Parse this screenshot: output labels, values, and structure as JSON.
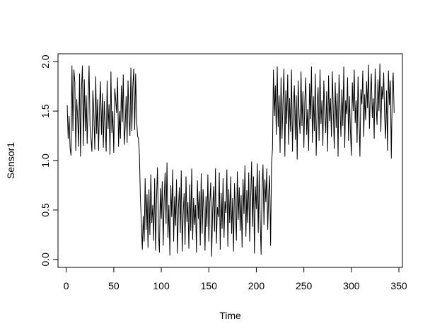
{
  "chart_data": {
    "type": "line",
    "xlabel": "Time",
    "ylabel": "Sensor1",
    "xlim": [
      -8.7,
      353.7
    ],
    "ylim": [
      -0.08,
      2.08
    ],
    "x_ticks": [
      "0",
      "50",
      "100",
      "150",
      "200",
      "250",
      "300",
      "350"
    ],
    "x_tick_values": [
      0,
      50,
      100,
      150,
      200,
      250,
      300,
      350
    ],
    "y_ticks": [
      "0.0",
      "0.5",
      "1.0",
      "1.5",
      "2.0"
    ],
    "y_tick_values": [
      0,
      0.5,
      1,
      1.5,
      2
    ],
    "grid": false,
    "color": "#000000",
    "series": [
      {
        "x_start": 1,
        "x_step": 1,
        "values": [
          1.56,
          1.22,
          1.45,
          1.13,
          1.05,
          1.96,
          1.3,
          1.92,
          1.8,
          1.1,
          1.62,
          1.43,
          1.14,
          1.88,
          1.04,
          1.72,
          1.96,
          1.15,
          1.82,
          1.3,
          1.66,
          1.17,
          1.59,
          1.96,
          1.36,
          1.22,
          1.09,
          1.71,
          1.48,
          1.11,
          1.85,
          1.27,
          1.62,
          1.1,
          1.54,
          1.8,
          1.26,
          1.68,
          1.13,
          1.6,
          1.35,
          1.09,
          1.81,
          1.32,
          1.57,
          1.06,
          1.9,
          1.28,
          1.5,
          1.08,
          1.73,
          1.62,
          1.48,
          1.84,
          1.14,
          1.5,
          1.22,
          1.76,
          1.39,
          1.87,
          1.16,
          1.34,
          1.65,
          1.18,
          1.81,
          1.45,
          1.25,
          1.94,
          1.3,
          1.74,
          1.93,
          1.31,
          1.88,
          1.42,
          1.25,
          1.22,
          1.05,
          0.62,
          0.38,
          0.1,
          0.44,
          0.18,
          0.82,
          0.3,
          0.66,
          0.12,
          0.71,
          0.25,
          0.86,
          0.37,
          0.55,
          0.19,
          0.82,
          0.09,
          0.62,
          0.93,
          0.28,
          0.07,
          0.72,
          0.41,
          0.79,
          0.14,
          0.6,
          0.88,
          0.36,
          0.98,
          0.22,
          0.55,
          0.04,
          0.75,
          0.43,
          0.91,
          0.18,
          0.64,
          0.34,
          0.81,
          0.06,
          0.51,
          0.73,
          0.27,
          0.9,
          0.08,
          0.46,
          0.67,
          0.15,
          0.84,
          0.38,
          0.58,
          0.11,
          0.76,
          0.29,
          0.92,
          0.2,
          0.62,
          0.35,
          0.55,
          0.07,
          0.8,
          0.41,
          0.69,
          0.14,
          0.87,
          0.26,
          0.71,
          0.48,
          0.09,
          0.64,
          0.33,
          0.86,
          0.18,
          0.57,
          0.78,
          0.03,
          0.49,
          0.74,
          0.28,
          0.92,
          0.16,
          0.53,
          0.43,
          0.88,
          0.1,
          0.67,
          0.31,
          0.82,
          0.22,
          0.59,
          0.47,
          0.91,
          0.13,
          0.71,
          0.37,
          0.84,
          0.26,
          0.62,
          0.08,
          0.77,
          0.52,
          0.19,
          0.89,
          0.4,
          0.73,
          0.29,
          0.65,
          0.12,
          0.81,
          0.46,
          0.95,
          0.23,
          0.7,
          0.37,
          0.88,
          0.18,
          0.6,
          0.99,
          0.33,
          0.84,
          0.06,
          0.74,
          0.51,
          0.97,
          0.27,
          0.9,
          0.42,
          0.05,
          0.71,
          0.96,
          0.35,
          0.81,
          0.58,
          0.92,
          0.3,
          0.67,
          0.85,
          0.14,
          0.97,
          1.12,
          1.92,
          1.45,
          1.76,
          1.26,
          1.95,
          1.34,
          1.66,
          1.08,
          1.84,
          1.22,
          1.58,
          1.93,
          1.04,
          1.71,
          1.37,
          1.87,
          1.16,
          1.63,
          1.29,
          1.92,
          1.09,
          1.55,
          1.76,
          1.21,
          1.66,
          1.01,
          1.81,
          1.45,
          1.27,
          1.9,
          1.35,
          1.7,
          1.13,
          1.6,
          1.84,
          1.26,
          1.52,
          1.1,
          1.78,
          1.42,
          1.95,
          1.18,
          1.65,
          1.3,
          1.88,
          1.05,
          1.57,
          1.74,
          1.2,
          1.92,
          1.37,
          1.61,
          1.15,
          1.81,
          1.49,
          1.28,
          1.7,
          1.09,
          1.86,
          1.4,
          1.63,
          1.24,
          1.9,
          1.5,
          1.12,
          1.79,
          1.33,
          1.68,
          1.04,
          1.87,
          1.55,
          1.24,
          1.72,
          1.35,
          1.95,
          1.13,
          1.61,
          1.47,
          1.84,
          1.2,
          1.65,
          1.3,
          1.05,
          1.79,
          1.5,
          1.92,
          1.38,
          1.61,
          1.18,
          1.85,
          1.45,
          1.04,
          1.72,
          1.57,
          1.91,
          1.24,
          1.67,
          1.41,
          1.8,
          1.53,
          1.97,
          1.32,
          1.68,
          1.88,
          1.43,
          1.63,
          1.22,
          1.93,
          1.58,
          1.36,
          1.82,
          1.5,
          1.98,
          1.29,
          1.75,
          1.62,
          1.89,
          1.43,
          1.22,
          1.71,
          1.1,
          1.91,
          1.56,
          1.81,
          1.02,
          1.7,
          1.89,
          1.48
        ]
      }
    ]
  }
}
